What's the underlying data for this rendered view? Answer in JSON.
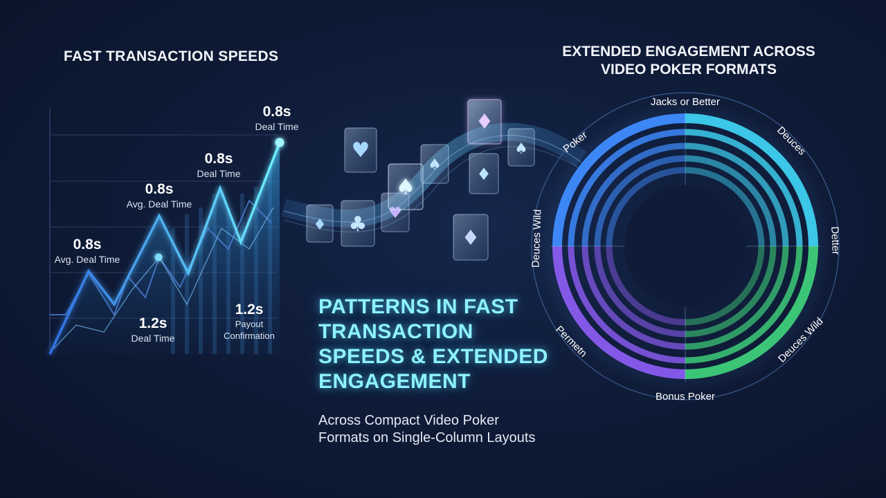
{
  "left_title": "FAST TRANSACTION SPEEDS",
  "right_title_line1": "EXTENDED ENGAGEMENT ACROSS",
  "right_title_line2": "VIDEO POKER FORMATS",
  "headline_lines": [
    "PATTERNS IN FAST",
    "TRANSACTION",
    "SPEEDS & EXTENDED",
    "ENGAGEMENT"
  ],
  "subline_lines": [
    "Across Compact Video Poker",
    "Formats on Single-Column Layouts"
  ],
  "chart_data": [
    {
      "type": "line",
      "title": "FAST TRANSACTION SPEEDS",
      "annotations": [
        {
          "value": "0.8s",
          "text": "Deal Time"
        },
        {
          "value": "0.8s",
          "text": "Deal Time"
        },
        {
          "value": "0.8s",
          "text": "Avg. Deal Time"
        },
        {
          "value": "0.8s",
          "text": "Avg. Deal Time"
        },
        {
          "value": "1.2s",
          "text": "Deal Time"
        },
        {
          "value": "1.2s",
          "text": "Payout Confirmation"
        }
      ],
      "grid": true
    },
    {
      "type": "pie",
      "title": "EXTENDED ENGAGEMENT ACROSS VIDEO POKER FORMATS",
      "categories": [
        "Jacks or Better",
        "Deuces",
        "Detter",
        "Deuces Wild",
        "Bonus Poker",
        "Permetn",
        "Deuces Wild",
        "Poker"
      ],
      "colors": {
        "blue": "#3f8cff",
        "cyan": "#3fd0f0",
        "purple": "#8a5cf0",
        "green": "#3fcf7a"
      }
    }
  ],
  "colors": {
    "accent": "#8ef2ff",
    "line": "#4fc3ff",
    "background": "#0e1a35"
  }
}
